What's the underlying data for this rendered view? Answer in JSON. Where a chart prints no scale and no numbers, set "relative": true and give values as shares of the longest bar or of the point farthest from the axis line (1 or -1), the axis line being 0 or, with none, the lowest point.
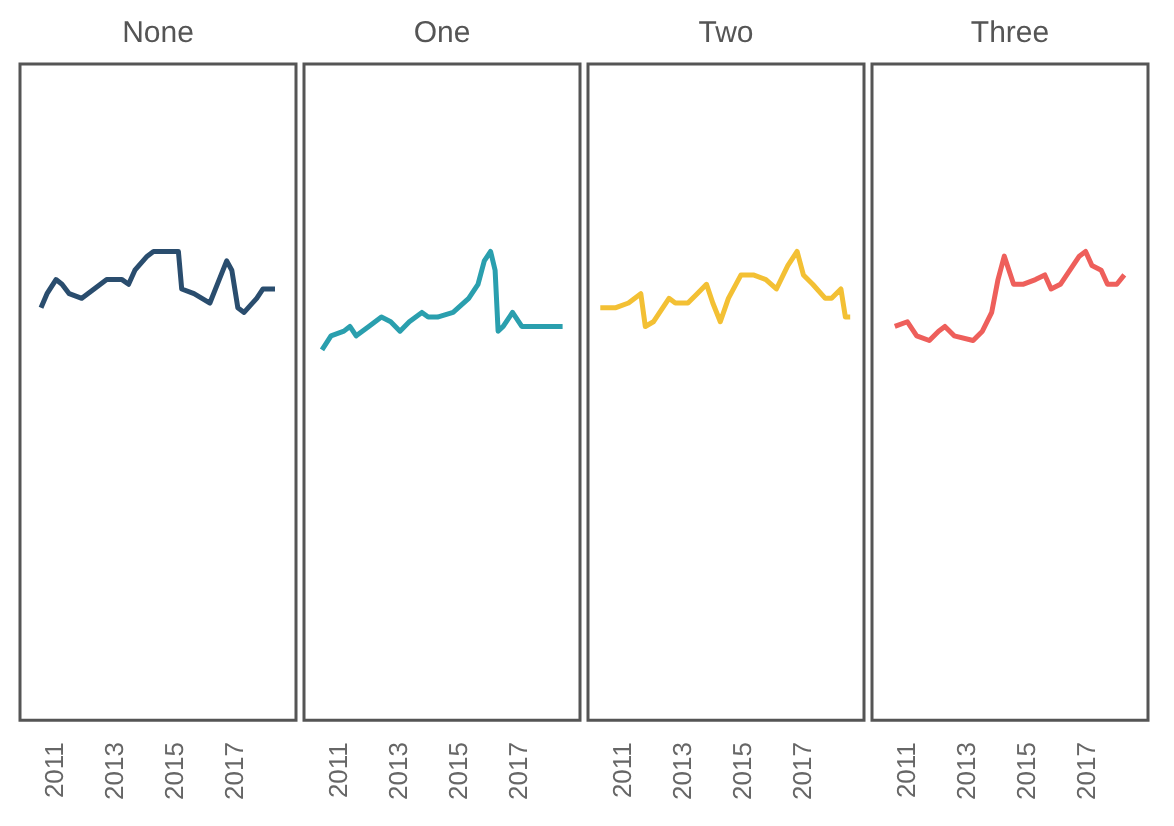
{
  "chart_data": [
    {
      "type": "line",
      "title": "None",
      "relative": true,
      "xlim": [
        2009.8,
        2019
      ],
      "xticks": [
        2011,
        2013,
        2015,
        2017
      ],
      "x": [
        2010.5,
        2010.7,
        2011.0,
        2011.2,
        2011.44,
        2011.86,
        2012.27,
        2012.69,
        2013.2,
        2013.42,
        2013.63,
        2014.04,
        2014.25,
        2015.08,
        2015.19,
        2015.6,
        2016.13,
        2016.44,
        2016.69,
        2016.86,
        2017.06,
        2017.27,
        2017.69,
        2017.9,
        2018.3
      ],
      "series": [
        {
          "color": "#2a4d6e",
          "values": [
            0.88,
            0.91,
            0.94,
            0.93,
            0.91,
            0.9,
            0.92,
            0.94,
            0.94,
            0.93,
            0.96,
            0.99,
            1,
            1,
            0.92,
            0.91,
            0.89,
            0.94,
            0.98,
            0.96,
            0.88,
            0.87,
            0.9,
            0.92,
            0.92
          ]
        }
      ]
    },
    {
      "type": "line",
      "title": "One",
      "relative": true,
      "xlim": [
        2009.8,
        2019
      ],
      "xticks": [
        2011,
        2013,
        2015,
        2017
      ],
      "x": [
        2010.4,
        2010.7,
        2011.13,
        2011.33,
        2011.54,
        2011.96,
        2012.38,
        2012.69,
        2013.0,
        2013.31,
        2013.73,
        2013.94,
        2014.25,
        2014.77,
        2015.29,
        2015.6,
        2015.81,
        2016.02,
        2016.17,
        2016.27,
        2016.44,
        2016.75,
        2017.06,
        2017.79,
        2018.42
      ],
      "series": [
        {
          "color": "#2a9fae",
          "values": [
            0.79,
            0.82,
            0.83,
            0.84,
            0.82,
            0.84,
            0.86,
            0.85,
            0.83,
            0.85,
            0.87,
            0.86,
            0.86,
            0.87,
            0.9,
            0.93,
            0.98,
            1,
            0.96,
            0.83,
            0.84,
            0.87,
            0.84,
            0.84,
            0.84
          ]
        }
      ]
    },
    {
      "type": "line",
      "title": "Two",
      "relative": true,
      "xlim": [
        2009.8,
        2019
      ],
      "xticks": [
        2011,
        2013,
        2015,
        2017
      ],
      "x": [
        2010.21,
        2010.73,
        2011.15,
        2011.56,
        2011.71,
        2011.98,
        2012.5,
        2012.71,
        2013.13,
        2013.44,
        2013.75,
        2013.96,
        2014.21,
        2014.48,
        2014.9,
        2015.31,
        2015.73,
        2016.08,
        2016.46,
        2016.77,
        2016.98,
        2017.29,
        2017.71,
        2017.92,
        2018.23,
        2018.38,
        2018.54
      ],
      "series": [
        {
          "color": "#f3c034",
          "values": [
            0.88,
            0.88,
            0.89,
            0.91,
            0.84,
            0.85,
            0.9,
            0.89,
            0.89,
            0.91,
            0.93,
            0.89,
            0.85,
            0.9,
            0.95,
            0.95,
            0.94,
            0.92,
            0.97,
            1,
            0.95,
            0.93,
            0.9,
            0.9,
            0.92,
            0.86,
            0.86
          ]
        }
      ]
    },
    {
      "type": "line",
      "title": "Three",
      "relative": true,
      "xlim": [
        2009.8,
        2019
      ],
      "xticks": [
        2011,
        2013,
        2015,
        2017
      ],
      "x": [
        2010.56,
        2010.98,
        2011.29,
        2011.71,
        2012.02,
        2012.23,
        2012.54,
        2013.17,
        2013.48,
        2013.79,
        2014.0,
        2014.21,
        2014.52,
        2014.83,
        2015.25,
        2015.56,
        2015.77,
        2016.08,
        2016.71,
        2016.92,
        2017.13,
        2017.44,
        2017.65,
        2017.96,
        2018.21
      ],
      "series": [
        {
          "color": "#ee5f5b",
          "values": [
            0.84,
            0.85,
            0.82,
            0.81,
            0.83,
            0.84,
            0.82,
            0.81,
            0.83,
            0.87,
            0.94,
            0.99,
            0.93,
            0.93,
            0.94,
            0.95,
            0.92,
            0.93,
            0.99,
            1,
            0.97,
            0.96,
            0.93,
            0.93,
            0.95
          ]
        }
      ]
    }
  ]
}
